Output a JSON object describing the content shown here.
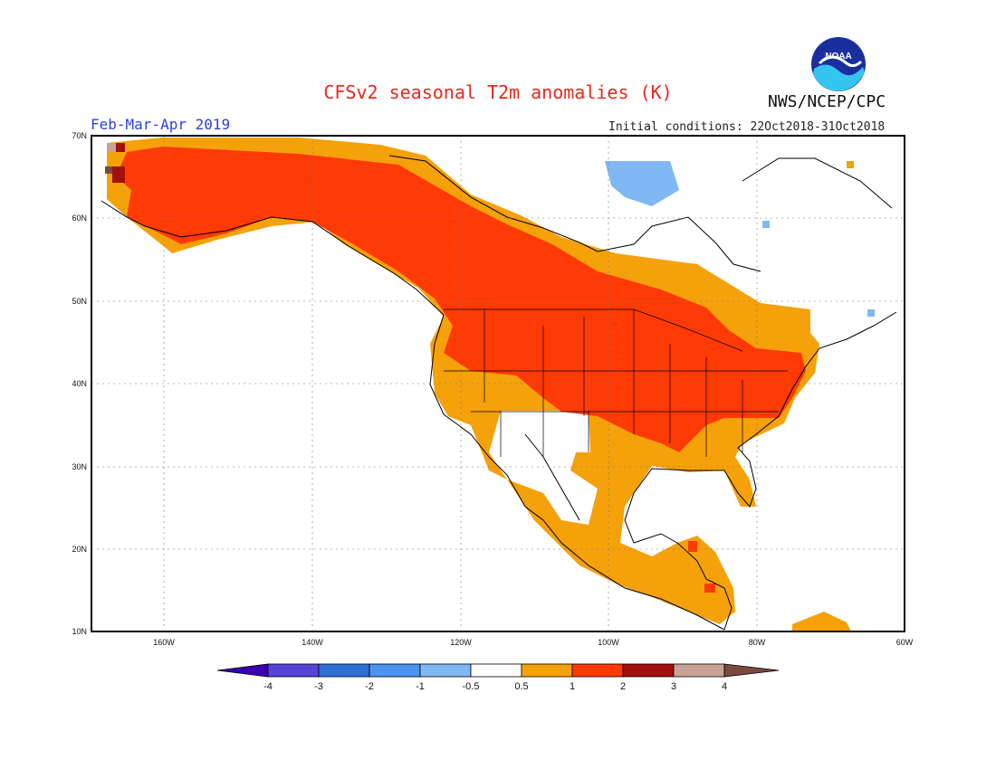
{
  "header": {
    "title": "CFSv2 seasonal T2m anomalies (K)",
    "season": "Feb-Mar-Apr 2019",
    "initial_conditions": "Initial conditions: 22Oct2018-31Oct2018",
    "agency": "NWS/NCEP/CPC",
    "logo_text": "NOAA"
  },
  "map": {
    "latitude_labels": [
      "70N",
      "60N",
      "50N",
      "40N",
      "30N",
      "20N",
      "10N"
    ],
    "longitude_labels": [
      "160W",
      "140W",
      "120W",
      "100W",
      "80W",
      "60W"
    ],
    "grid": true
  },
  "colorbar": {
    "labels": [
      "-4",
      "-3",
      "-2",
      "-1",
      "-0.5",
      "0.5",
      "1",
      "2",
      "3",
      "4"
    ],
    "colors": [
      "#3a00b0",
      "#5544d8",
      "#2f6fd6",
      "#4a93f0",
      "#7fb8f4",
      "#ffffff",
      "#f5a10a",
      "#ff3a05",
      "#a20f0f",
      "#c8a296",
      "#7a4a3e"
    ]
  },
  "legend": {
    "anomaly_colors": {
      "above_0_5": "#f5a10a",
      "above_1": "#ff3a05",
      "above_2": "#a20f0f",
      "above_3": "#c8a296",
      "below_neg_0_5": "#7fb8f4"
    }
  }
}
